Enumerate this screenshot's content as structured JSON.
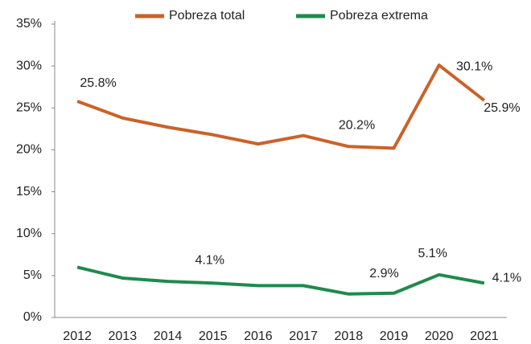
{
  "chart_data": {
    "type": "line",
    "categories": [
      "2012",
      "2013",
      "2014",
      "2015",
      "2016",
      "2017",
      "2018",
      "2019",
      "2020",
      "2021"
    ],
    "series": [
      {
        "name": "Pobreza total",
        "color": "#c9632a",
        "values": [
          25.8,
          23.8,
          22.7,
          21.8,
          20.7,
          21.7,
          20.4,
          20.2,
          30.1,
          25.9
        ],
        "value_labels": [
          "25.8%",
          null,
          null,
          null,
          null,
          null,
          null,
          "20.2%",
          "30.1%",
          "25.9%"
        ]
      },
      {
        "name": "Pobreza extrema",
        "color": "#1f8a4c",
        "values": [
          6.0,
          4.7,
          4.3,
          4.1,
          3.8,
          3.8,
          2.8,
          2.9,
          5.1,
          4.1
        ],
        "value_labels": [
          null,
          null,
          null,
          "4.1%",
          null,
          null,
          null,
          "2.9%",
          "5.1%",
          "4.1%"
        ]
      }
    ],
    "ylim": [
      0,
      35
    ],
    "yticks": [
      {
        "value": 0,
        "label": "0%"
      },
      {
        "value": 5,
        "label": "5%"
      },
      {
        "value": 10,
        "label": "10%"
      },
      {
        "value": 15,
        "label": "15%"
      },
      {
        "value": 20,
        "label": "20%"
      },
      {
        "value": 25,
        "label": "25%"
      },
      {
        "value": 30,
        "label": "30%"
      },
      {
        "value": 35,
        "label": "35%"
      }
    ],
    "grid": false,
    "legend": "top"
  }
}
